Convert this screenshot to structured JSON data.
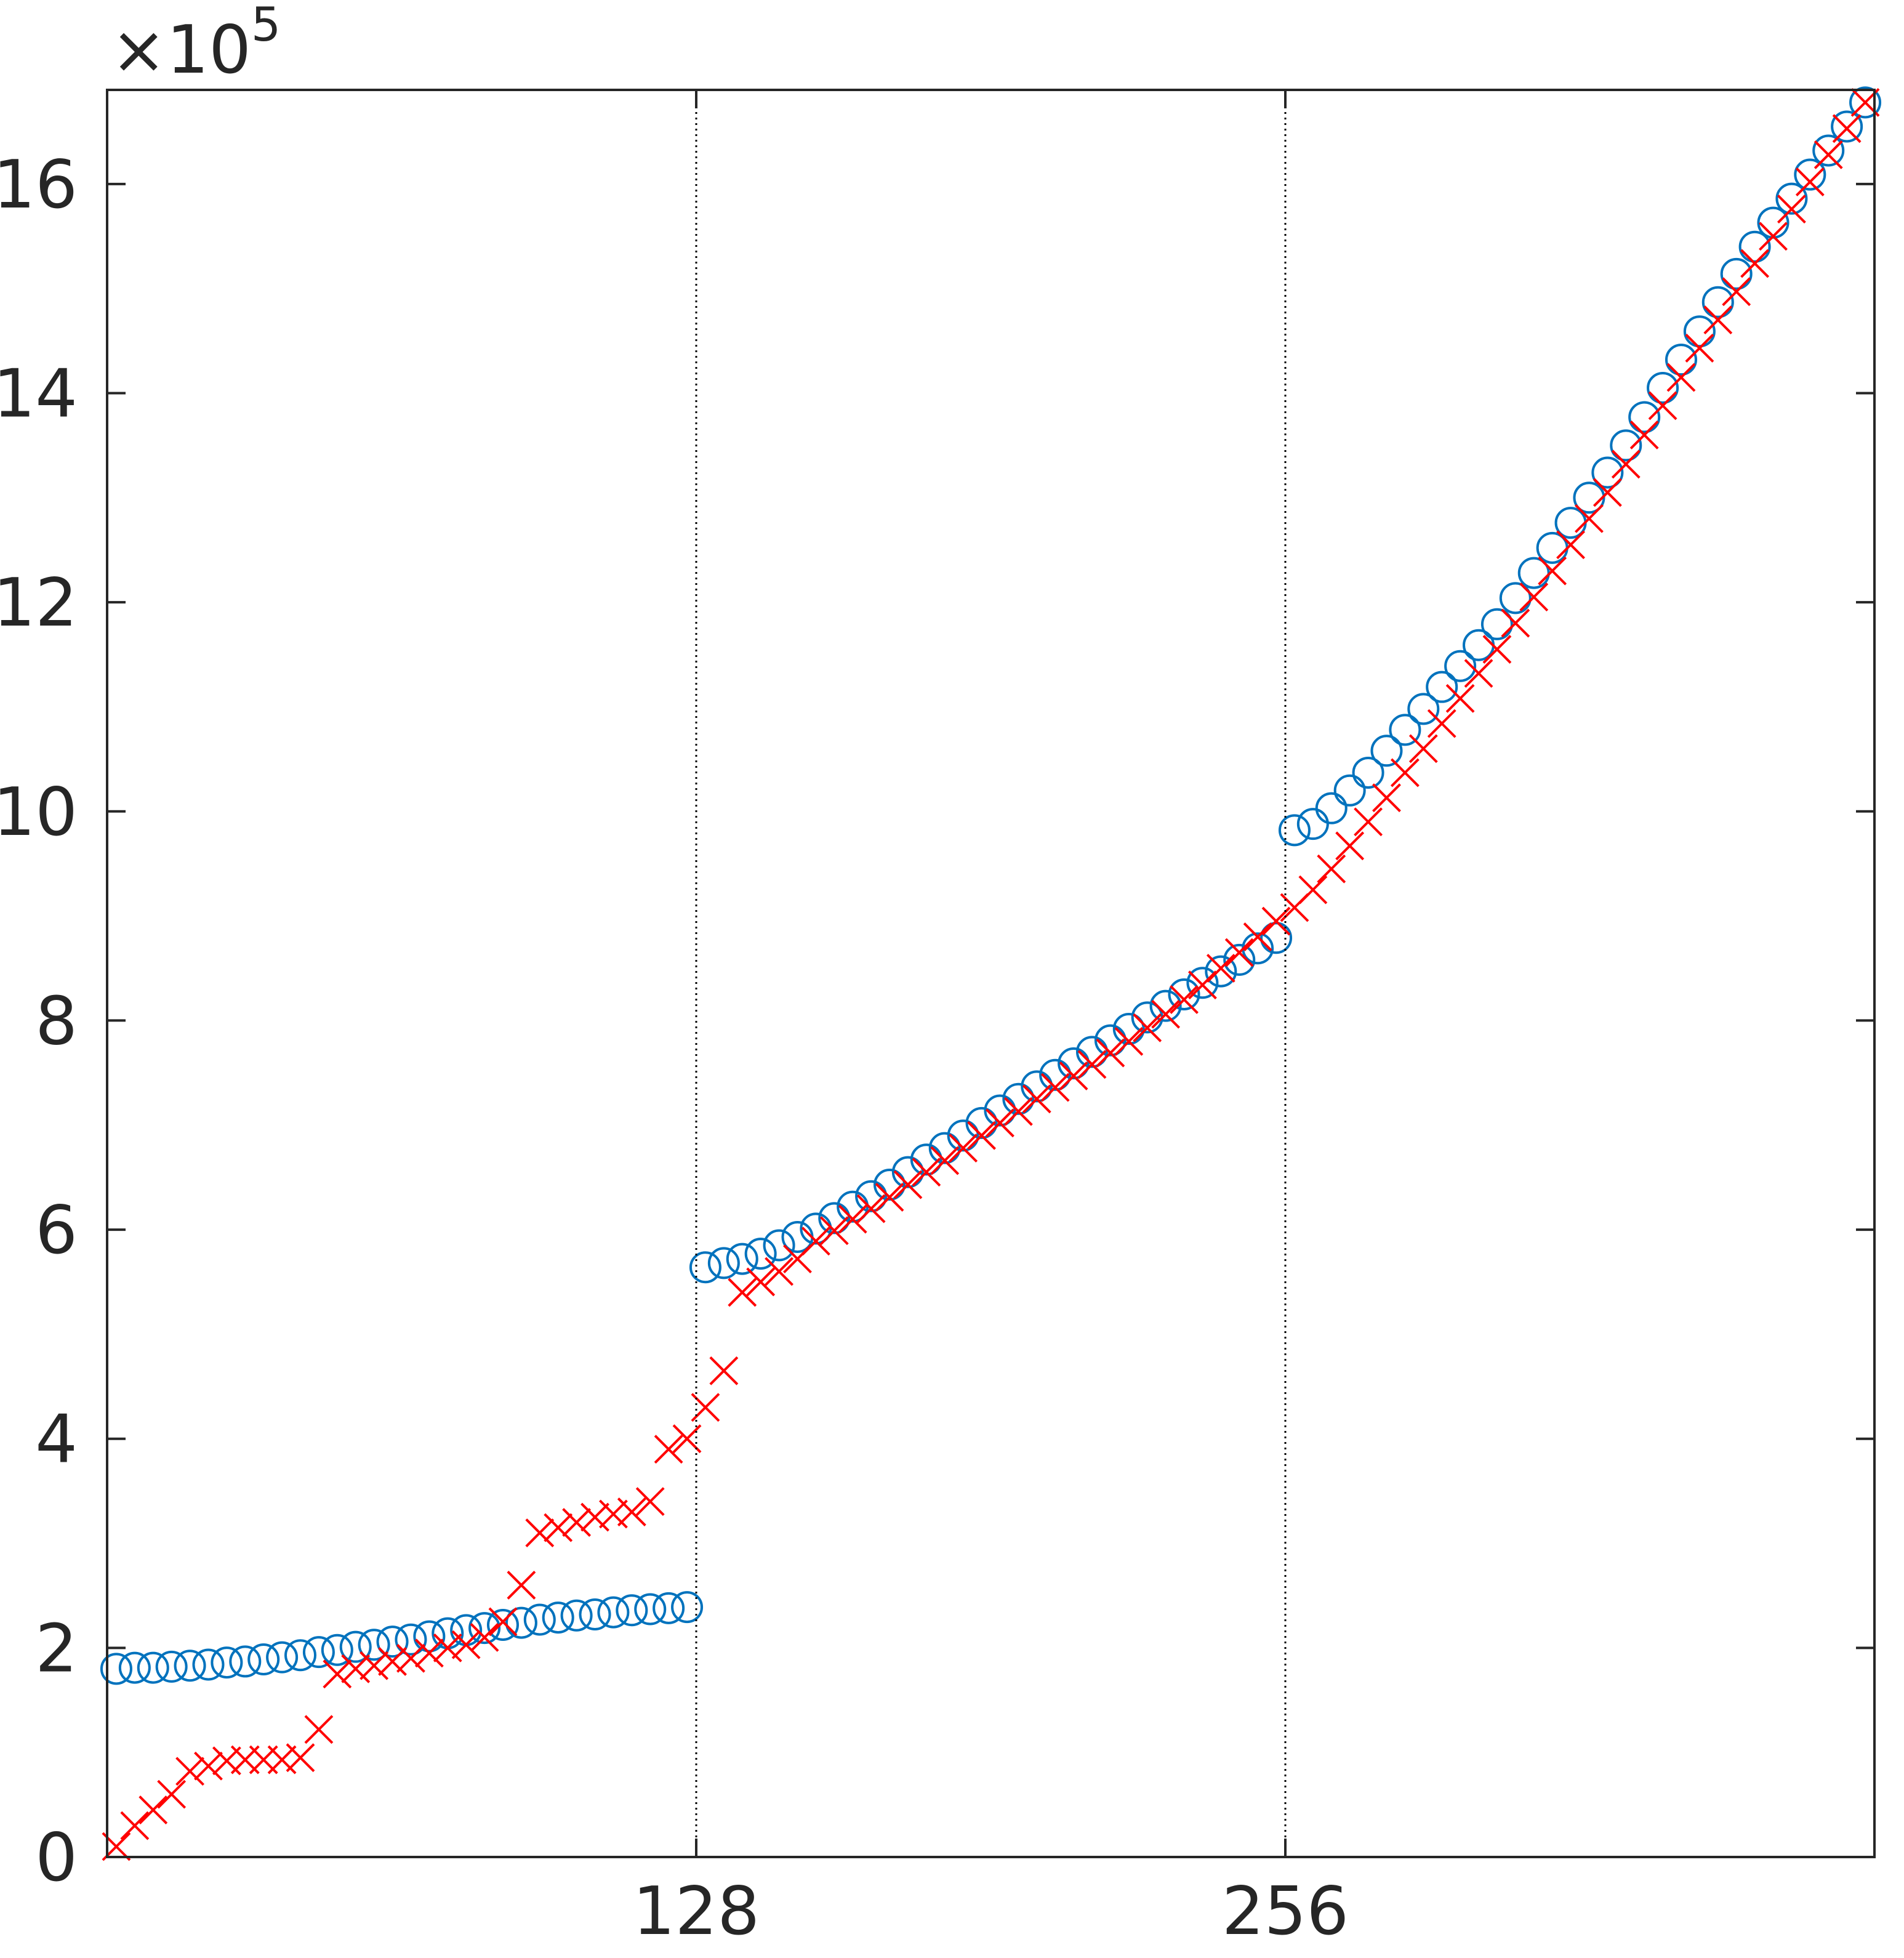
{
  "chart_data": {
    "type": "scatter",
    "y_multiplier": {
      "base": "×10",
      "exponent": "5"
    },
    "x": [
      2,
      6,
      10,
      14,
      18,
      22,
      26,
      30,
      34,
      38,
      42,
      46,
      50,
      54,
      58,
      62,
      66,
      70,
      74,
      78,
      82,
      86,
      90,
      94,
      98,
      102,
      106,
      110,
      114,
      118,
      122,
      126,
      130,
      134,
      138,
      142,
      146,
      150,
      154,
      158,
      162,
      166,
      170,
      174,
      178,
      182,
      186,
      190,
      194,
      198,
      202,
      206,
      210,
      214,
      218,
      222,
      226,
      230,
      234,
      238,
      242,
      246,
      250,
      254,
      258,
      262,
      266,
      270,
      274,
      278,
      282,
      286,
      290,
      294,
      298,
      302,
      306,
      310,
      314,
      318,
      322,
      326,
      330,
      334,
      338,
      342,
      346,
      350,
      354,
      358,
      362,
      366,
      370,
      374,
      378,
      382
    ],
    "series": [
      {
        "marker": "circle",
        "color": "#0072bd",
        "values": [
          1.8,
          1.81,
          1.81,
          1.82,
          1.83,
          1.84,
          1.86,
          1.87,
          1.89,
          1.91,
          1.93,
          1.96,
          1.98,
          2.01,
          2.03,
          2.06,
          2.08,
          2.11,
          2.14,
          2.17,
          2.19,
          2.22,
          2.24,
          2.27,
          2.29,
          2.31,
          2.32,
          2.34,
          2.36,
          2.37,
          2.38,
          2.39,
          5.64,
          5.68,
          5.72,
          5.77,
          5.85,
          5.93,
          6.01,
          6.11,
          6.22,
          6.32,
          6.43,
          6.55,
          6.67,
          6.78,
          6.9,
          7.02,
          7.14,
          7.25,
          7.37,
          7.48,
          7.59,
          7.7,
          7.81,
          7.92,
          8.03,
          8.14,
          8.25,
          8.36,
          8.47,
          8.58,
          8.69,
          8.79,
          9.82,
          9.88,
          10.03,
          10.2,
          10.37,
          10.58,
          10.78,
          10.98,
          11.19,
          11.39,
          11.59,
          11.79,
          12.04,
          12.28,
          12.52,
          12.76,
          13.0,
          13.24,
          13.5,
          13.77,
          14.05,
          14.32,
          14.59,
          14.87,
          15.14,
          15.4,
          15.63,
          15.86,
          16.09,
          16.32,
          16.55,
          16.78
        ]
      },
      {
        "marker": "x",
        "color": "#ff0000",
        "values": [
          0.1,
          0.3,
          0.45,
          0.6,
          0.82,
          0.87,
          0.92,
          0.93,
          0.93,
          0.93,
          0.95,
          1.22,
          1.75,
          1.8,
          1.83,
          1.87,
          1.9,
          1.95,
          2.0,
          2.03,
          2.1,
          2.25,
          2.6,
          3.1,
          3.15,
          3.2,
          3.25,
          3.28,
          3.3,
          3.4,
          3.9,
          4.0,
          4.3,
          4.65,
          5.4,
          5.5,
          5.6,
          5.72,
          5.89,
          5.99,
          6.1,
          6.2,
          6.31,
          6.43,
          6.55,
          6.66,
          6.78,
          6.9,
          7.02,
          7.13,
          7.25,
          7.36,
          7.47,
          7.58,
          7.69,
          7.8,
          7.93,
          8.06,
          8.2,
          8.34,
          8.5,
          8.65,
          8.8,
          8.95,
          9.08,
          9.25,
          9.45,
          9.67,
          9.9,
          10.13,
          10.37,
          10.6,
          10.84,
          11.08,
          11.32,
          11.55,
          11.8,
          12.05,
          12.3,
          12.55,
          12.8,
          13.05,
          13.32,
          13.6,
          13.88,
          14.15,
          14.43,
          14.7,
          14.97,
          15.24,
          15.5,
          15.76,
          16.02,
          16.28,
          16.53,
          16.78
        ]
      }
    ],
    "xlim": [
      0,
      384
    ],
    "xticks": [
      128,
      256
    ],
    "ylim": [
      0,
      16.9
    ],
    "yticks": [
      0,
      2,
      4,
      6,
      8,
      10,
      12,
      14,
      16
    ],
    "xgrid": true,
    "ygrid": false
  }
}
